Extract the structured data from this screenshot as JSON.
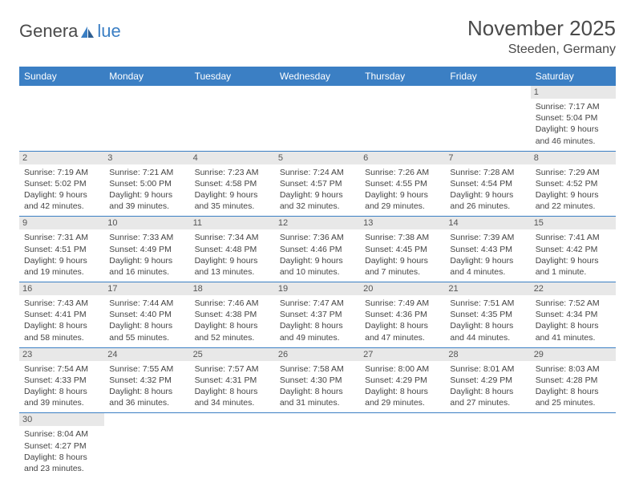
{
  "logo": {
    "text_left": "Genera",
    "text_right": "lue"
  },
  "header": {
    "month_title": "November 2025",
    "location": "Steeden, Germany"
  },
  "colors": {
    "header_bg": "#3b7fc4",
    "header_text": "#ffffff",
    "daynum_bg": "#e8e8e8",
    "border": "#3b7fc4",
    "logo_gray": "#4a4a4a",
    "logo_blue": "#3b7fc4"
  },
  "columns": [
    "Sunday",
    "Monday",
    "Tuesday",
    "Wednesday",
    "Thursday",
    "Friday",
    "Saturday"
  ],
  "weeks": [
    [
      null,
      null,
      null,
      null,
      null,
      null,
      {
        "n": "1",
        "sr": "Sunrise: 7:17 AM",
        "ss": "Sunset: 5:04 PM",
        "dl": "Daylight: 9 hours and 46 minutes."
      }
    ],
    [
      {
        "n": "2",
        "sr": "Sunrise: 7:19 AM",
        "ss": "Sunset: 5:02 PM",
        "dl": "Daylight: 9 hours and 42 minutes."
      },
      {
        "n": "3",
        "sr": "Sunrise: 7:21 AM",
        "ss": "Sunset: 5:00 PM",
        "dl": "Daylight: 9 hours and 39 minutes."
      },
      {
        "n": "4",
        "sr": "Sunrise: 7:23 AM",
        "ss": "Sunset: 4:58 PM",
        "dl": "Daylight: 9 hours and 35 minutes."
      },
      {
        "n": "5",
        "sr": "Sunrise: 7:24 AM",
        "ss": "Sunset: 4:57 PM",
        "dl": "Daylight: 9 hours and 32 minutes."
      },
      {
        "n": "6",
        "sr": "Sunrise: 7:26 AM",
        "ss": "Sunset: 4:55 PM",
        "dl": "Daylight: 9 hours and 29 minutes."
      },
      {
        "n": "7",
        "sr": "Sunrise: 7:28 AM",
        "ss": "Sunset: 4:54 PM",
        "dl": "Daylight: 9 hours and 26 minutes."
      },
      {
        "n": "8",
        "sr": "Sunrise: 7:29 AM",
        "ss": "Sunset: 4:52 PM",
        "dl": "Daylight: 9 hours and 22 minutes."
      }
    ],
    [
      {
        "n": "9",
        "sr": "Sunrise: 7:31 AM",
        "ss": "Sunset: 4:51 PM",
        "dl": "Daylight: 9 hours and 19 minutes."
      },
      {
        "n": "10",
        "sr": "Sunrise: 7:33 AM",
        "ss": "Sunset: 4:49 PM",
        "dl": "Daylight: 9 hours and 16 minutes."
      },
      {
        "n": "11",
        "sr": "Sunrise: 7:34 AM",
        "ss": "Sunset: 4:48 PM",
        "dl": "Daylight: 9 hours and 13 minutes."
      },
      {
        "n": "12",
        "sr": "Sunrise: 7:36 AM",
        "ss": "Sunset: 4:46 PM",
        "dl": "Daylight: 9 hours and 10 minutes."
      },
      {
        "n": "13",
        "sr": "Sunrise: 7:38 AM",
        "ss": "Sunset: 4:45 PM",
        "dl": "Daylight: 9 hours and 7 minutes."
      },
      {
        "n": "14",
        "sr": "Sunrise: 7:39 AM",
        "ss": "Sunset: 4:43 PM",
        "dl": "Daylight: 9 hours and 4 minutes."
      },
      {
        "n": "15",
        "sr": "Sunrise: 7:41 AM",
        "ss": "Sunset: 4:42 PM",
        "dl": "Daylight: 9 hours and 1 minute."
      }
    ],
    [
      {
        "n": "16",
        "sr": "Sunrise: 7:43 AM",
        "ss": "Sunset: 4:41 PM",
        "dl": "Daylight: 8 hours and 58 minutes."
      },
      {
        "n": "17",
        "sr": "Sunrise: 7:44 AM",
        "ss": "Sunset: 4:40 PM",
        "dl": "Daylight: 8 hours and 55 minutes."
      },
      {
        "n": "18",
        "sr": "Sunrise: 7:46 AM",
        "ss": "Sunset: 4:38 PM",
        "dl": "Daylight: 8 hours and 52 minutes."
      },
      {
        "n": "19",
        "sr": "Sunrise: 7:47 AM",
        "ss": "Sunset: 4:37 PM",
        "dl": "Daylight: 8 hours and 49 minutes."
      },
      {
        "n": "20",
        "sr": "Sunrise: 7:49 AM",
        "ss": "Sunset: 4:36 PM",
        "dl": "Daylight: 8 hours and 47 minutes."
      },
      {
        "n": "21",
        "sr": "Sunrise: 7:51 AM",
        "ss": "Sunset: 4:35 PM",
        "dl": "Daylight: 8 hours and 44 minutes."
      },
      {
        "n": "22",
        "sr": "Sunrise: 7:52 AM",
        "ss": "Sunset: 4:34 PM",
        "dl": "Daylight: 8 hours and 41 minutes."
      }
    ],
    [
      {
        "n": "23",
        "sr": "Sunrise: 7:54 AM",
        "ss": "Sunset: 4:33 PM",
        "dl": "Daylight: 8 hours and 39 minutes."
      },
      {
        "n": "24",
        "sr": "Sunrise: 7:55 AM",
        "ss": "Sunset: 4:32 PM",
        "dl": "Daylight: 8 hours and 36 minutes."
      },
      {
        "n": "25",
        "sr": "Sunrise: 7:57 AM",
        "ss": "Sunset: 4:31 PM",
        "dl": "Daylight: 8 hours and 34 minutes."
      },
      {
        "n": "26",
        "sr": "Sunrise: 7:58 AM",
        "ss": "Sunset: 4:30 PM",
        "dl": "Daylight: 8 hours and 31 minutes."
      },
      {
        "n": "27",
        "sr": "Sunrise: 8:00 AM",
        "ss": "Sunset: 4:29 PM",
        "dl": "Daylight: 8 hours and 29 minutes."
      },
      {
        "n": "28",
        "sr": "Sunrise: 8:01 AM",
        "ss": "Sunset: 4:29 PM",
        "dl": "Daylight: 8 hours and 27 minutes."
      },
      {
        "n": "29",
        "sr": "Sunrise: 8:03 AM",
        "ss": "Sunset: 4:28 PM",
        "dl": "Daylight: 8 hours and 25 minutes."
      }
    ],
    [
      {
        "n": "30",
        "sr": "Sunrise: 8:04 AM",
        "ss": "Sunset: 4:27 PM",
        "dl": "Daylight: 8 hours and 23 minutes."
      },
      null,
      null,
      null,
      null,
      null,
      null
    ]
  ]
}
